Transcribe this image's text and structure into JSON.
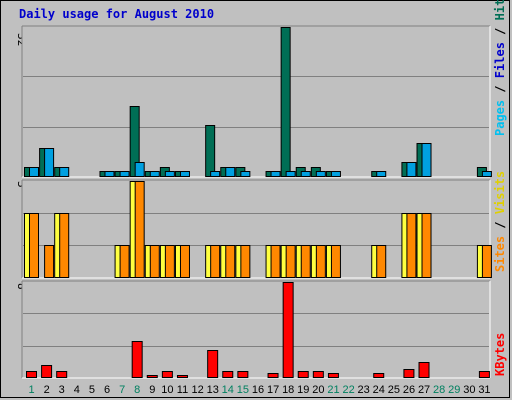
{
  "title": "Daily usage for August 2010",
  "colors": {
    "title": "#0000cc",
    "hits": "#006e55",
    "files": "#00a0e0",
    "pages": "#00c0f0",
    "visits": "#ffff40",
    "sites": "#ff8800",
    "kbytes": "#ff0000",
    "weekend": "#008060",
    "weekday": "#000000"
  },
  "chart_data": [
    {
      "type": "bar",
      "panel": "hits-files-pages",
      "categories": [
        "1",
        "2",
        "3",
        "4",
        "5",
        "6",
        "7",
        "8",
        "9",
        "10",
        "11",
        "12",
        "13",
        "14",
        "15",
        "16",
        "17",
        "18",
        "19",
        "20",
        "21",
        "22",
        "23",
        "24",
        "25",
        "26",
        "27",
        "28",
        "29",
        "30",
        "31"
      ],
      "weekend_days": [
        "1",
        "7",
        "8",
        "14",
        "15",
        "21",
        "22",
        "28",
        "29"
      ],
      "ylim": [
        0,
        32
      ],
      "ytick_label": "32",
      "axis_label": {
        "pages": "Pages",
        "sep1": " / ",
        "files": "Files",
        "sep2": " / ",
        "hits": "Hits"
      },
      "series": [
        {
          "name": "Hits",
          "values": [
            2,
            6,
            2,
            0,
            0,
            1,
            1,
            15,
            1,
            2,
            1,
            0,
            11,
            2,
            2,
            0,
            1,
            32,
            2,
            2,
            1,
            0,
            0,
            1,
            0,
            3,
            7,
            0,
            0,
            0,
            2
          ]
        },
        {
          "name": "Files",
          "values": [
            2,
            6,
            2,
            0,
            0,
            1,
            1,
            3,
            1,
            1,
            1,
            0,
            1,
            2,
            1,
            0,
            1,
            1,
            1,
            1,
            1,
            0,
            0,
            1,
            0,
            3,
            7,
            0,
            0,
            0,
            1
          ]
        }
      ]
    },
    {
      "type": "bar",
      "panel": "visits-sites",
      "categories": [
        "1",
        "2",
        "3",
        "4",
        "5",
        "6",
        "7",
        "8",
        "9",
        "10",
        "11",
        "12",
        "13",
        "14",
        "15",
        "16",
        "17",
        "18",
        "19",
        "20",
        "21",
        "22",
        "23",
        "24",
        "25",
        "26",
        "27",
        "28",
        "29",
        "30",
        "31"
      ],
      "ylim": [
        0,
        3
      ],
      "ytick_label": "3",
      "axis_label": {
        "sites": "Sites",
        "sep": " / ",
        "visits": "Visits"
      },
      "series": [
        {
          "name": "Visits",
          "values": [
            2,
            0,
            2,
            0,
            0,
            0,
            1,
            3,
            1,
            1,
            1,
            0,
            1,
            1,
            1,
            0,
            1,
            1,
            1,
            1,
            1,
            0,
            0,
            1,
            0,
            2,
            2,
            0,
            0,
            0,
            1
          ]
        },
        {
          "name": "Sites",
          "values": [
            2,
            1,
            2,
            0,
            0,
            0,
            1,
            3,
            1,
            1,
            1,
            0,
            1,
            1,
            1,
            0,
            1,
            1,
            1,
            1,
            1,
            0,
            0,
            1,
            0,
            2,
            2,
            0,
            0,
            0,
            1
          ]
        }
      ]
    },
    {
      "type": "bar",
      "panel": "kbytes",
      "categories": [
        "1",
        "2",
        "3",
        "4",
        "5",
        "6",
        "7",
        "8",
        "9",
        "10",
        "11",
        "12",
        "13",
        "14",
        "15",
        "16",
        "17",
        "18",
        "19",
        "20",
        "21",
        "22",
        "23",
        "24",
        "25",
        "26",
        "27",
        "28",
        "29",
        "30",
        "31"
      ],
      "ylim": [
        0,
        8
      ],
      "ytick_label": "8",
      "axis_label": {
        "kbytes": "KBytes"
      },
      "series": [
        {
          "name": "KBytes",
          "values": [
            0.5,
            1,
            0.5,
            0,
            0,
            0,
            0,
            3,
            0.2,
            0.5,
            0.2,
            0,
            2.3,
            0.5,
            0.5,
            0,
            0.3,
            8,
            0.5,
            0.5,
            0.3,
            0,
            0,
            0.3,
            0,
            0.7,
            1.3,
            0,
            0,
            0,
            0.5
          ]
        }
      ]
    }
  ]
}
